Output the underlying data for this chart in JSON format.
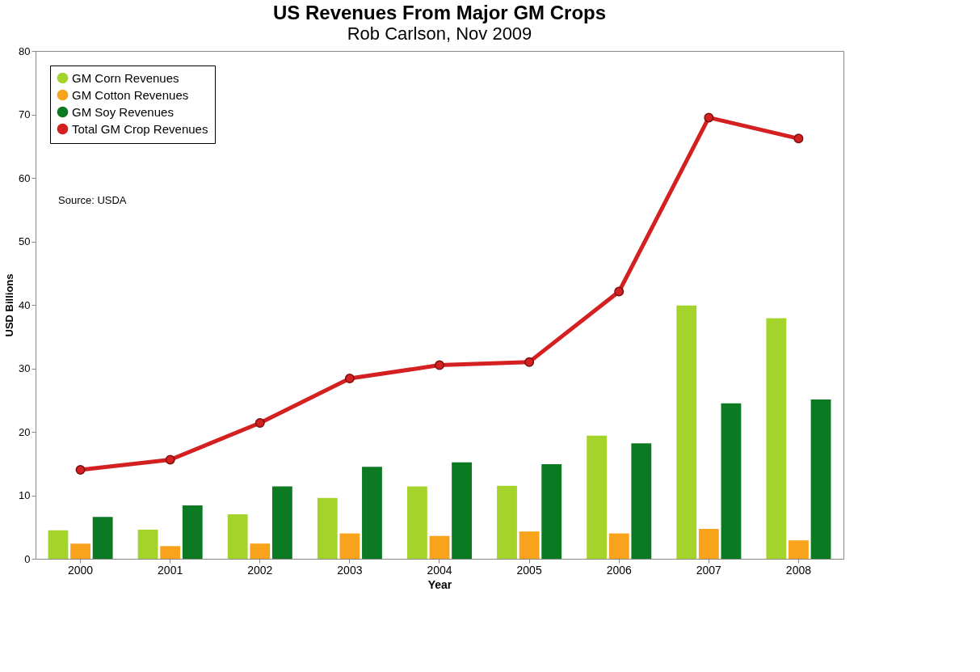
{
  "chart_data": {
    "type": "bar",
    "title": "US Revenues From Major GM Crops",
    "subtitle": "Rob Carlson, Nov 2009",
    "xlabel": "Year",
    "ylabel": "USD Billions",
    "categories": [
      "2000",
      "2001",
      "2002",
      "2003",
      "2004",
      "2005",
      "2006",
      "2007",
      "2008"
    ],
    "series": [
      {
        "name": "GM Corn Revenues",
        "color": "#a4d42c",
        "values": [
          4.5,
          4.6,
          7.0,
          9.6,
          11.4,
          11.5,
          19.4,
          39.9,
          37.9
        ]
      },
      {
        "name": "GM Cotton Revenues",
        "color": "#f9a21b",
        "values": [
          2.4,
          2.0,
          2.4,
          4.0,
          3.6,
          4.3,
          4.0,
          4.7,
          2.9
        ]
      },
      {
        "name": "GM Soy Revenues",
        "color": "#0b7a22",
        "values": [
          6.6,
          8.4,
          11.4,
          14.5,
          15.2,
          14.9,
          18.2,
          24.5,
          25.1
        ]
      },
      {
        "name": "Total GM Crop Revenues",
        "type": "line",
        "color": "#d42020",
        "marker": "circle",
        "values": [
          14.0,
          15.6,
          21.4,
          28.4,
          30.5,
          31.0,
          42.1,
          69.5,
          66.2
        ]
      }
    ],
    "ylim": [
      0,
      80
    ],
    "yticks": [
      0,
      10,
      20,
      30,
      40,
      50,
      60,
      70,
      80
    ],
    "grid": false,
    "legend": "top left",
    "annotations": [
      "Source: USDA"
    ]
  }
}
